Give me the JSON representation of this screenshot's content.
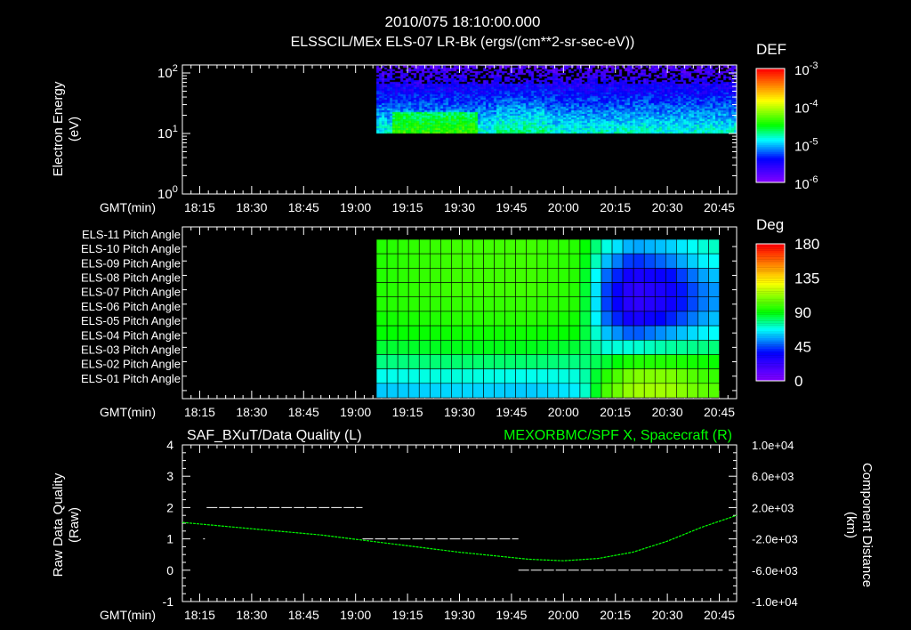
{
  "header": {
    "title": "2010/075 18:10:00.000",
    "subtitle": "ELSSCIL/MEx ELS-07 LR-Bk  (ergs/(cm**2-sr-sec-eV))"
  },
  "time_axis_label": "GMT(min)",
  "chart_data": [
    {
      "type": "heatmap",
      "name": "Electron energy spectrogram",
      "ylabel": [
        "Electron Energy",
        "(eV)"
      ],
      "yscale": "log",
      "ylim": [
        1,
        135
      ],
      "yticks": [
        {
          "base": "10",
          "exp": "0",
          "value": 1
        },
        {
          "base": "10",
          "exp": "1",
          "value": 10
        },
        {
          "base": "10",
          "exp": "2",
          "value": 100
        }
      ],
      "xlim_min": [
        0,
        160
      ],
      "xticks": [
        "18:15",
        "18:30",
        "18:45",
        "19:00",
        "19:15",
        "19:30",
        "19:45",
        "20:00",
        "20:15",
        "20:30",
        "20:45"
      ],
      "xticks_min": [
        5,
        20,
        35,
        50,
        65,
        80,
        95,
        110,
        125,
        140,
        155
      ],
      "data_start_min": 56,
      "data_end_min": 159.5,
      "energy_range_eV": [
        10,
        150
      ],
      "colorbar": {
        "label": "DEF",
        "scale": "log",
        "range": [
          1e-06,
          0.001
        ],
        "ticks": [
          {
            "base": "10",
            "exp": "-3"
          },
          {
            "base": "10",
            "exp": "-4"
          },
          {
            "base": "10",
            "exp": "-5"
          },
          {
            "base": "10",
            "exp": "-6"
          }
        ]
      }
    },
    {
      "type": "heatmap",
      "name": "Pitch angle",
      "rows": [
        "ELS-11 Pitch Angle",
        "ELS-10 Pitch Angle",
        "ELS-09 Pitch Angle",
        "ELS-08 Pitch Angle",
        "ELS-07 Pitch Angle",
        "ELS-06 Pitch Angle",
        "ELS-05 Pitch Angle",
        "ELS-04 Pitch Angle",
        "ELS-03 Pitch Angle",
        "ELS-02 Pitch Angle",
        "ELS-01 Pitch Angle"
      ],
      "xlim_min": [
        0,
        160
      ],
      "xticks": [
        "18:15",
        "18:30",
        "18:45",
        "19:00",
        "19:15",
        "19:30",
        "19:45",
        "20:00",
        "20:15",
        "20:30",
        "20:45"
      ],
      "data_start_min": 56,
      "data_end_min": 155,
      "columns": 32,
      "keyframe_times_min": [
        56,
        80,
        100,
        115,
        122,
        130,
        140,
        150,
        159
      ],
      "values_deg": [
        [
          95,
          100,
          100,
          95,
          70,
          55,
          60,
          70,
          75
        ],
        [
          95,
          100,
          100,
          95,
          60,
          40,
          50,
          65,
          70
        ],
        [
          95,
          100,
          100,
          95,
          50,
          28,
          35,
          55,
          65
        ],
        [
          95,
          100,
          100,
          95,
          45,
          22,
          30,
          50,
          60
        ],
        [
          95,
          98,
          98,
          95,
          45,
          22,
          30,
          50,
          60
        ],
        [
          92,
          96,
          96,
          92,
          50,
          28,
          38,
          55,
          65
        ],
        [
          90,
          92,
          92,
          90,
          60,
          45,
          55,
          65,
          70
        ],
        [
          85,
          88,
          88,
          85,
          70,
          70,
          75,
          78,
          80
        ],
        [
          78,
          80,
          80,
          78,
          85,
          95,
          95,
          92,
          90
        ],
        [
          68,
          70,
          68,
          70,
          95,
          110,
          110,
          100,
          95
        ],
        [
          60,
          62,
          60,
          65,
          100,
          115,
          115,
          105,
          100
        ]
      ],
      "colorbar": {
        "label": "Deg",
        "range": [
          0,
          180
        ],
        "ticks": [
          "180",
          "135",
          "90",
          "45",
          "0"
        ]
      }
    },
    {
      "type": "line",
      "name": "Data quality and spacecraft X",
      "left_title": "SAF_BXuT/Data Quality (L)",
      "right_title": "MEXORBMC/SPF X, Spacecraft (R)",
      "ylabel_left": [
        "Raw Data Quality",
        "(Raw)"
      ],
      "ylabel_right": [
        "Component Distance",
        "(km)"
      ],
      "ylim_left": [
        -1,
        4
      ],
      "yticks_left": [
        "4",
        "3",
        "2",
        "1",
        "0",
        "-1"
      ],
      "ylim_right": [
        -10000,
        10000
      ],
      "yticks_right": [
        "1.0e+04",
        "6.0e+03",
        "2.0e+03",
        "-2.0e+03",
        "-6.0e+03",
        "-1.0e+04"
      ],
      "xticks": [
        "18:15",
        "18:30",
        "18:45",
        "19:00",
        "19:15",
        "19:30",
        "19:45",
        "20:00",
        "20:15",
        "20:30",
        "20:45"
      ],
      "series": [
        {
          "name": "Data Quality",
          "color": "#ffffff",
          "segments": [
            {
              "start_min": 6,
              "end_min": 6.5,
              "value": 1
            },
            {
              "start_min": 7,
              "end_min": 52,
              "value": 2
            },
            {
              "start_min": 52,
              "end_min": 97,
              "value": 1
            },
            {
              "start_min": 97,
              "end_min": 156,
              "value": 0
            }
          ]
        },
        {
          "name": "MEXORBMC/SPF X, Spacecraft",
          "color": "#00ff00",
          "x_min": [
            0,
            20,
            40,
            60,
            80,
            100,
            110,
            120,
            130,
            140,
            150,
            160
          ],
          "values_km": [
            100,
            -700,
            -1500,
            -2600,
            -3700,
            -4600,
            -4800,
            -4500,
            -3700,
            -2300,
            -500,
            1000
          ]
        }
      ]
    }
  ]
}
